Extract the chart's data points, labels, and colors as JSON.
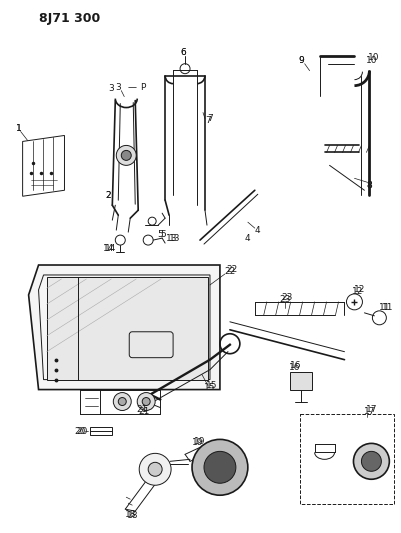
{
  "title": "8J71 300",
  "bg_color": "#ffffff",
  "line_color": "#1a1a1a",
  "figsize": [
    4.01,
    5.33
  ],
  "dpi": 100
}
